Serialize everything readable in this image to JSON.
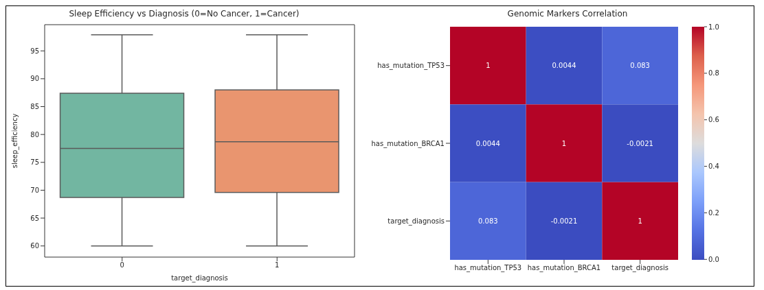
{
  "chart_data": [
    {
      "type": "box",
      "title": "Sleep Efficiency vs Diagnosis (0=No Cancer, 1=Cancer)",
      "xlabel": "target_diagnosis",
      "ylabel": "sleep_efficiency",
      "categories": [
        "0",
        "1"
      ],
      "boxes": [
        {
          "low": 60,
          "q1": 68.7,
          "median": 77.5,
          "q3": 87.4,
          "high": 97.9
        },
        {
          "low": 60,
          "q1": 69.6,
          "median": 78.7,
          "q3": 88.0,
          "high": 97.9
        }
      ],
      "colors": [
        "#72b6a1",
        "#e9956f"
      ],
      "ylim": [
        58.0,
        99.7
      ],
      "yticks": [
        60,
        65,
        70,
        75,
        80,
        85,
        90,
        95
      ],
      "grid": false
    },
    {
      "type": "heatmap",
      "title": "Genomic Markers Correlation",
      "categories": [
        "has_mutation_TP53",
        "has_mutation_BRCA1",
        "target_diagnosis"
      ],
      "y_categories": [
        "has_mutation_TP53",
        "has_mutation_BRCA1",
        "target_diagnosis"
      ],
      "cells": [
        [
          1,
          0.0044,
          0.083
        ],
        [
          0.0044,
          1,
          -0.0021
        ],
        [
          0.083,
          -0.0021,
          1
        ]
      ],
      "clim": [
        -0.0021,
        1
      ],
      "cticks": [
        {
          "value": 0,
          "label": "0.0"
        },
        {
          "value": 0.2,
          "label": "0.2"
        },
        {
          "value": 0.4,
          "label": "0.4"
        },
        {
          "value": 0.6,
          "label": "0.6"
        },
        {
          "value": 0.8,
          "label": "0.8"
        },
        {
          "value": 1,
          "label": "1.0"
        }
      ],
      "data_labels": true
    }
  ]
}
